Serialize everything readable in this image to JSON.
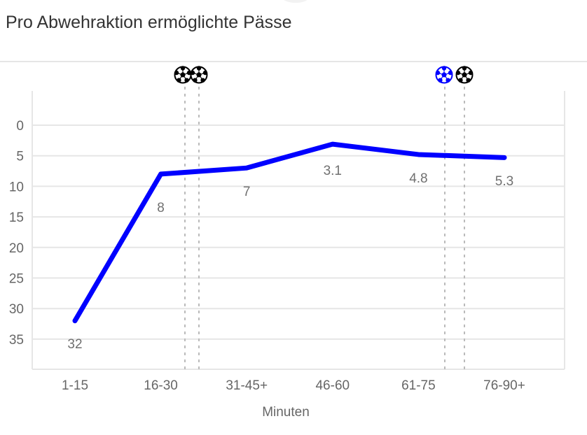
{
  "header": {
    "title": "Pro Abwehraktion ermöglichte Pässe"
  },
  "colors": {
    "line": "#0000ff",
    "grid": "#e6e6e6",
    "axis_text": "#666666",
    "goal_home": "#0000ff",
    "goal_away": "#000000"
  },
  "chart_data": {
    "type": "line",
    "title": "Pro Abwehraktion ermöglichte Pässe",
    "xlabel": "Minuten",
    "ylabel": "",
    "categories": [
      "1-15",
      "16-30",
      "31-45+",
      "46-60",
      "61-75",
      "76-90+"
    ],
    "series": [
      {
        "name": "Pro Abwehraktion ermöglichte Pässe",
        "values": [
          32,
          8,
          7,
          3.1,
          4.8,
          5.3
        ],
        "color": "#0000ff"
      }
    ],
    "data_labels": [
      "32",
      "8",
      "7",
      "3.1",
      "4.8",
      "5.3"
    ],
    "y_ticks": [
      "0",
      "5",
      "10",
      "15",
      "20",
      "25",
      "30",
      "35"
    ],
    "ylim": [
      40,
      -5
    ],
    "y_reversed": true,
    "grid": true,
    "legend": "none",
    "goal_markers": [
      {
        "position_minute": "approx. 28",
        "team_color": "#000000",
        "icon": "soccer-ball-icon"
      },
      {
        "position_minute": "approx. 31",
        "team_color": "#000000",
        "icon": "soccer-ball-icon"
      },
      {
        "position_minute": "approx. 73",
        "team_color": "#0000ff",
        "icon": "soccer-ball-icon"
      },
      {
        "position_minute": "approx. 77",
        "team_color": "#000000",
        "icon": "soccer-ball-icon"
      }
    ]
  }
}
